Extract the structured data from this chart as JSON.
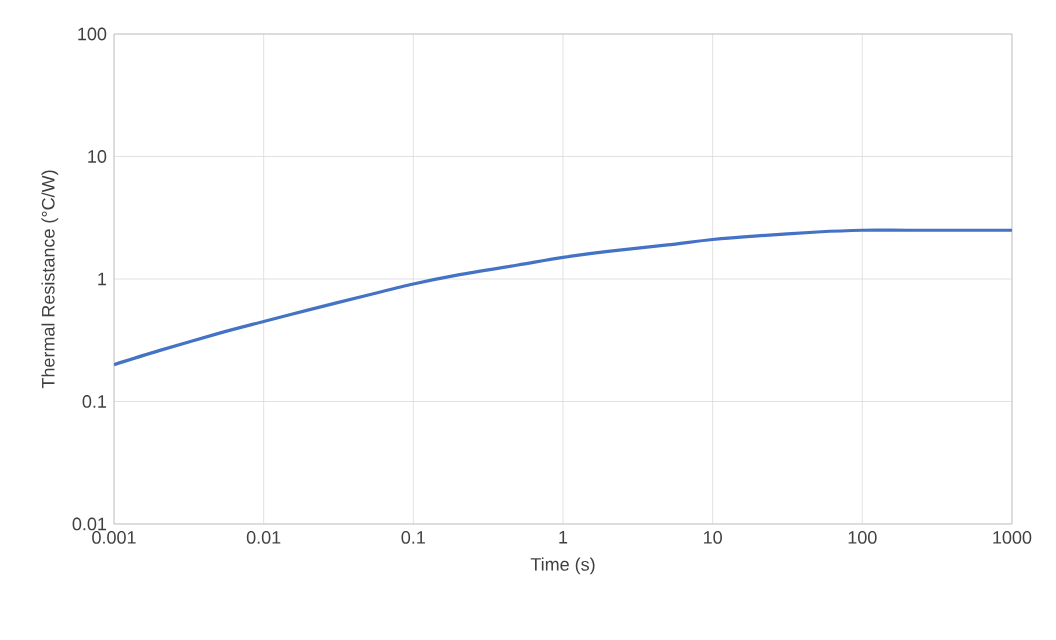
{
  "chart_data": {
    "type": "line",
    "xlabel": "Time (s)",
    "ylabel": "Thermal Resistance (°C/W)",
    "log": "xy",
    "grid": true,
    "marker": "none",
    "line_style": "solid",
    "x": [
      0.001,
      0.002,
      0.005,
      0.01,
      0.02,
      0.05,
      0.1,
      0.2,
      0.5,
      1,
      2,
      5,
      10,
      20,
      50,
      100,
      200,
      500,
      1000
    ],
    "series": [
      {
        "color": "#4472c4",
        "values": [
          0.2,
          0.26,
          0.36,
          0.45,
          0.56,
          0.74,
          0.91,
          1.08,
          1.3,
          1.5,
          1.68,
          1.9,
          2.1,
          2.25,
          2.42,
          2.5,
          2.5,
          2.5,
          2.5
        ]
      }
    ],
    "xlim": [
      0.001,
      1000
    ],
    "xticks": [
      0.001,
      0.01,
      0.1,
      1,
      10,
      100,
      1000
    ],
    "ylim": [
      0.01,
      100
    ],
    "yticks": [
      0.01,
      0.1,
      1,
      10,
      100
    ]
  }
}
